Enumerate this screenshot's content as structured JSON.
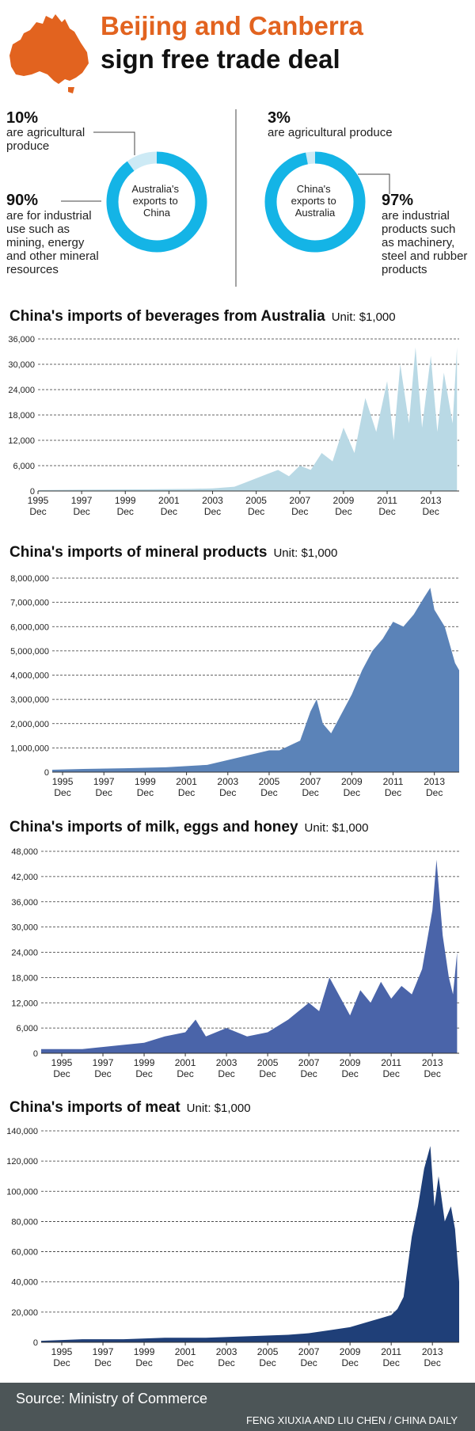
{
  "header": {
    "title_line1": "Beijing and Canberra",
    "title_line2": "sign free trade deal",
    "map_color": "#e2631f"
  },
  "donuts": [
    {
      "center_label": [
        "Australia's",
        "exports to",
        "China"
      ],
      "small_pct": "10%",
      "small_text": [
        "are agricultural",
        "produce"
      ],
      "large_pct": "90%",
      "large_text": [
        "are for industrial",
        "use such as",
        "mining, energy",
        "and other mineral",
        "resources"
      ]
    },
    {
      "center_label": [
        "China's",
        "exports to",
        "Australia"
      ],
      "small_pct": "3%",
      "small_text": [
        "are agricultural produce"
      ],
      "large_pct": "97%",
      "large_text": [
        "are industrial",
        "products such",
        "as machinery,",
        "steel and rubber",
        "products"
      ]
    }
  ],
  "chart_data": [
    {
      "type": "pie",
      "title": "Australia's exports to China",
      "slices": [
        {
          "label": "are agricultural produce",
          "value": 10
        },
        {
          "label": "are for industrial use such as mining, energy and other mineral resources",
          "value": 90
        }
      ],
      "colors": [
        "#cdeaf5",
        "#14b4e6"
      ]
    },
    {
      "type": "pie",
      "title": "China's exports to Australia",
      "slices": [
        {
          "label": "are agricultural produce",
          "value": 3
        },
        {
          "label": "are industrial products such as machinery, steel and rubber products",
          "value": 97
        }
      ],
      "colors": [
        "#cdeaf5",
        "#14b4e6"
      ]
    },
    {
      "type": "area",
      "title": "China's imports of beverages from Australia",
      "unit": "Unit: $1,000",
      "xlabel": "",
      "ylabel": "",
      "ylim": [
        0,
        36000
      ],
      "yticks": [
        0,
        6000,
        12000,
        18000,
        24000,
        30000,
        36000
      ],
      "ytick_labels": [
        "0",
        "6,000",
        "12,000",
        "18,000",
        "24,000",
        "30,000",
        "36,000"
      ],
      "xticks": [
        1995,
        1997,
        1999,
        2001,
        2003,
        2005,
        2007,
        2009,
        2011,
        2013
      ],
      "xtick_labels": [
        "1995",
        "1997",
        "1999",
        "2001",
        "2003",
        "2005",
        "2007",
        "2009",
        "2011",
        "2013"
      ],
      "xtick_sub": "Dec",
      "xlim": [
        1995,
        2014.3
      ],
      "color": "#b9d9e5",
      "x": [
        1995.0,
        1997.0,
        2000.0,
        2002.0,
        2003.0,
        2004.0,
        2004.5,
        2005.0,
        2005.5,
        2006.0,
        2006.5,
        2007.0,
        2007.5,
        2008.0,
        2008.5,
        2009.0,
        2009.5,
        2010.0,
        2010.5,
        2011.0,
        2011.3,
        2011.6,
        2012.0,
        2012.3,
        2012.6,
        2013.0,
        2013.3,
        2013.6,
        2014.0,
        2014.2
      ],
      "values": [
        200,
        300,
        400,
        500,
        600,
        1000,
        2000,
        3000,
        4000,
        5000,
        3500,
        6000,
        5000,
        9000,
        7000,
        15000,
        9000,
        22000,
        14000,
        26000,
        12000,
        30000,
        16000,
        34000,
        15000,
        32000,
        14000,
        28000,
        16000,
        34000
      ]
    },
    {
      "type": "area",
      "title": "China's imports of mineral products",
      "unit": "Unit: $1,000",
      "xlabel": "",
      "ylabel": "",
      "ylim": [
        0,
        8000000
      ],
      "yticks": [
        0,
        1000000,
        2000000,
        3000000,
        4000000,
        5000000,
        6000000,
        7000000,
        8000000
      ],
      "ytick_labels": [
        "0",
        "1,000,000",
        "2,000,000",
        "3,000,000",
        "4,000,000",
        "5,000,000",
        "6,000,000",
        "7,000,000",
        "8,000,000"
      ],
      "xticks": [
        1995,
        1997,
        1999,
        2001,
        2003,
        2005,
        2007,
        2009,
        2011,
        2013
      ],
      "xtick_labels": [
        "1995",
        "1997",
        "1999",
        "2001",
        "2003",
        "2005",
        "2007",
        "2009",
        "2011",
        "2013"
      ],
      "xtick_sub": "Dec",
      "xlim": [
        1994.5,
        2014.2
      ],
      "color": "#5b83b8",
      "x": [
        1994.5,
        1996.0,
        1998.0,
        2000.0,
        2002.0,
        2003.0,
        2004.0,
        2005.0,
        2005.5,
        2006.0,
        2006.5,
        2007.0,
        2007.3,
        2007.6,
        2008.0,
        2008.5,
        2009.0,
        2009.5,
        2010.0,
        2010.5,
        2011.0,
        2011.5,
        2012.0,
        2012.5,
        2012.8,
        2013.0,
        2013.5,
        2014.0,
        2014.2
      ],
      "values": [
        100000,
        130000,
        160000,
        200000,
        300000,
        500000,
        700000,
        900000,
        900000,
        1100000,
        1300000,
        2500000,
        3000000,
        2000000,
        1600000,
        2400000,
        3200000,
        4200000,
        5000000,
        5500000,
        6200000,
        6000000,
        6500000,
        7200000,
        7600000,
        6700000,
        6000000,
        4500000,
        4200000
      ]
    },
    {
      "type": "area",
      "title": "China's imports of milk, eggs and honey",
      "unit": "Unit: $1,000",
      "xlabel": "",
      "ylabel": "",
      "ylim": [
        0,
        48000
      ],
      "yticks": [
        0,
        6000,
        12000,
        18000,
        24000,
        30000,
        36000,
        42000,
        48000
      ],
      "ytick_labels": [
        "0",
        "6,000",
        "12,000",
        "18,000",
        "24,000",
        "30,000",
        "36,000",
        "42,000",
        "48,000"
      ],
      "xticks": [
        1995,
        1997,
        1999,
        2001,
        2003,
        2005,
        2007,
        2009,
        2011,
        2013
      ],
      "xtick_labels": [
        "1995",
        "1997",
        "1999",
        "2001",
        "2003",
        "2005",
        "2007",
        "2009",
        "2011",
        "2013"
      ],
      "xtick_sub": "Dec",
      "xlim": [
        1994.0,
        2014.3
      ],
      "color": "#4a64a9",
      "x": [
        1994.0,
        1996.0,
        1998.0,
        1999.0,
        2000.0,
        2001.0,
        2001.5,
        2002.0,
        2003.0,
        2004.0,
        2005.0,
        2006.0,
        2007.0,
        2007.5,
        2008.0,
        2009.0,
        2009.5,
        2010.0,
        2010.5,
        2011.0,
        2011.5,
        2012.0,
        2012.5,
        2013.0,
        2013.2,
        2013.5,
        2013.8,
        2014.0,
        2014.2
      ],
      "values": [
        1000,
        1000,
        2000,
        2500,
        4000,
        5000,
        8000,
        4000,
        6000,
        4000,
        5000,
        8000,
        12000,
        10000,
        18000,
        9000,
        15000,
        12000,
        17000,
        13000,
        16000,
        14000,
        20000,
        34000,
        46000,
        28000,
        18000,
        14000,
        24000
      ]
    },
    {
      "type": "area",
      "title": "China's imports of meat",
      "unit": "Unit: $1,000",
      "xlabel": "",
      "ylabel": "",
      "ylim": [
        0,
        140000
      ],
      "yticks": [
        0,
        20000,
        40000,
        60000,
        80000,
        100000,
        120000,
        140000
      ],
      "ytick_labels": [
        "0",
        "20,000",
        "40,000",
        "60,000",
        "80,000",
        "100,000",
        "120,000",
        "140,000"
      ],
      "xticks": [
        1995,
        1997,
        1999,
        2001,
        2003,
        2005,
        2007,
        2009,
        2011,
        2013
      ],
      "xtick_labels": [
        "1995",
        "1997",
        "1999",
        "2001",
        "2003",
        "2005",
        "2007",
        "2009",
        "2011",
        "2013"
      ],
      "xtick_sub": "Dec",
      "xlim": [
        1994.0,
        2014.3
      ],
      "color": "#1f3f78",
      "x": [
        1994.0,
        1996.0,
        1998.0,
        2000.0,
        2002.0,
        2004.0,
        2006.0,
        2007.0,
        2008.0,
        2009.0,
        2010.0,
        2010.5,
        2011.0,
        2011.3,
        2011.6,
        2012.0,
        2012.3,
        2012.6,
        2012.9,
        2013.1,
        2013.3,
        2013.6,
        2013.9,
        2014.1,
        2014.3
      ],
      "values": [
        1000,
        2000,
        2000,
        3000,
        3000,
        4000,
        5000,
        6000,
        8000,
        10000,
        14000,
        16000,
        18000,
        22000,
        30000,
        70000,
        90000,
        115000,
        130000,
        90000,
        110000,
        80000,
        90000,
        75000,
        40000
      ]
    }
  ],
  "footer": {
    "source": "Source: Ministry of Commerce",
    "credit": "FENG XIUXIA AND LIU CHEN / CHINA DAILY"
  }
}
